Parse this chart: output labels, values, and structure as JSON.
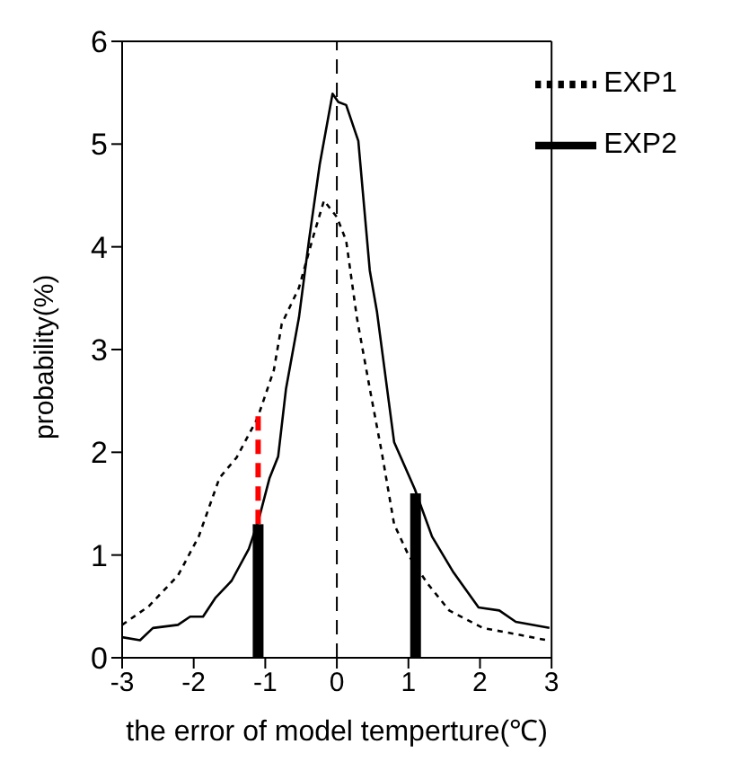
{
  "chart_data": {
    "type": "line",
    "xlabel": "the error of model temperture(℃)",
    "ylabel": "probability(%)",
    "xlim": [
      -3,
      3
    ],
    "xticks": [
      -3,
      -2,
      -1,
      0,
      1,
      2,
      3
    ],
    "ylim": [
      0,
      6
    ],
    "yticks": [
      0,
      1,
      2,
      3,
      4,
      5,
      6
    ],
    "grid": false,
    "legend": "top right",
    "marker": "none",
    "ref_lines": [
      {
        "axis": "x",
        "value": 0,
        "color": "#000000",
        "line_style": "dashed"
      }
    ],
    "series": [
      {
        "name": "EXP1",
        "color": "#000000",
        "line_style": "dotted",
        "x": [
          -3,
          -2.63,
          -2.22,
          -1.93,
          -1.64,
          -1.4,
          -1.11,
          -0.88,
          -0.77,
          -0.53,
          -0.33,
          -0.18,
          0,
          0.13,
          0.28,
          0.46,
          0.63,
          0.8,
          1.0,
          1.27,
          1.57,
          2.04,
          2.5,
          2.94
        ],
        "values": [
          0.32,
          0.5,
          0.8,
          1.18,
          1.75,
          1.95,
          2.33,
          2.8,
          3.25,
          3.6,
          4.1,
          4.45,
          4.29,
          4.06,
          3.31,
          2.62,
          1.99,
          1.3,
          1.0,
          0.72,
          0.46,
          0.29,
          0.23,
          0.17
        ]
      },
      {
        "name": "EXP2",
        "color": "#000000",
        "line_style": "solid",
        "x": [
          -3,
          -2.75,
          -2.57,
          -2.22,
          -2.05,
          -1.87,
          -1.7,
          -1.47,
          -1.23,
          -1.09,
          -0.94,
          -0.82,
          -0.71,
          -0.53,
          -0.39,
          -0.24,
          -0.06,
          0.02,
          0.13,
          0.3,
          0.46,
          0.56,
          0.8,
          1.09,
          1.33,
          1.63,
          1.98,
          2.27,
          2.5,
          2.97
        ],
        "values": [
          0.2,
          0.17,
          0.29,
          0.32,
          0.4,
          0.4,
          0.58,
          0.75,
          1.06,
          1.35,
          1.75,
          1.96,
          2.62,
          3.31,
          4.06,
          4.8,
          5.49,
          5.41,
          5.38,
          5.03,
          3.77,
          3.37,
          2.1,
          1.64,
          1.18,
          0.83,
          0.49,
          0.46,
          0.35,
          0.29
        ]
      },
      {
        "type": "bar",
        "color": "#000000",
        "x": [
          -1.1,
          1.1
        ],
        "values": [
          1.3,
          1.6
        ]
      },
      {
        "color": "#ff0000",
        "line_style": "dashed",
        "x": [
          -1.1,
          -1.1
        ],
        "values": [
          1.3,
          2.4
        ]
      }
    ]
  }
}
